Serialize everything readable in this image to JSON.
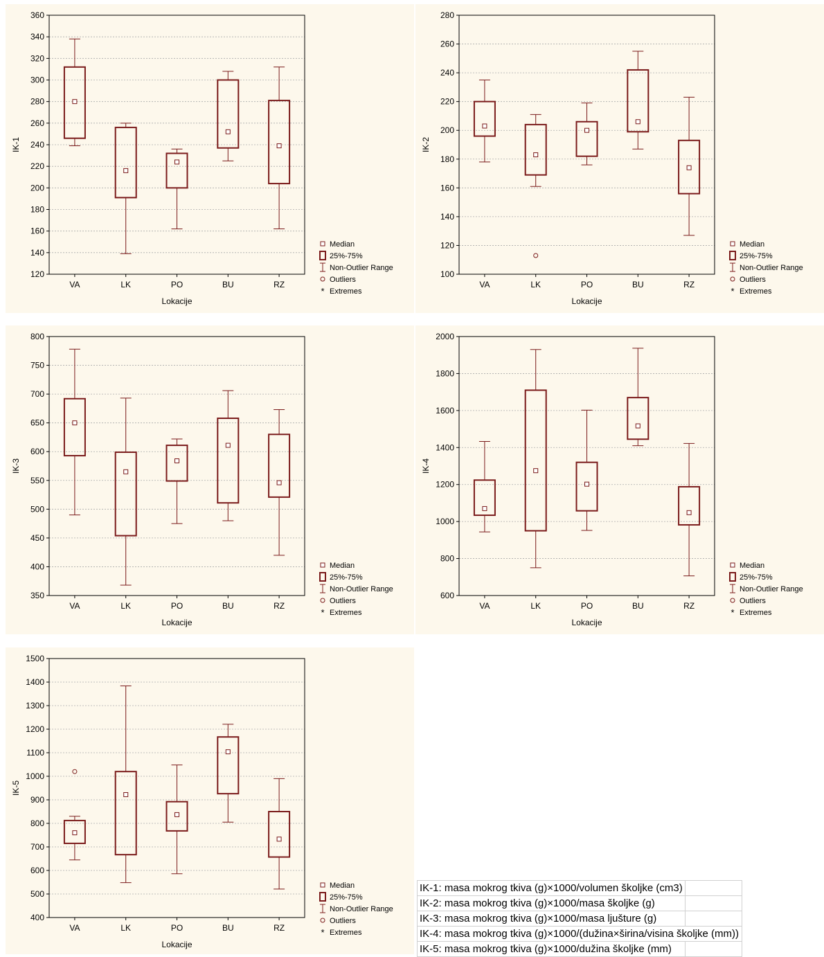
{
  "colors": {
    "panel_bg": "#fdf8ec",
    "mark": "#7a1a1a",
    "grid": "#aaaaaa"
  },
  "legend": [
    "Median",
    "25%-75%",
    "Non-Outlier Range",
    "Outliers",
    "Extremes"
  ],
  "chart_data": [
    {
      "type": "boxplot",
      "ylabel": "IK-1",
      "xlabel": "Lokacije",
      "categories": [
        "VA",
        "LK",
        "PO",
        "BU",
        "RZ"
      ],
      "ylim": [
        120,
        360
      ],
      "yticks": [
        120,
        140,
        160,
        180,
        200,
        220,
        240,
        260,
        280,
        300,
        320,
        340,
        360
      ],
      "grid": true,
      "legend_position": "bottom-right",
      "median": [
        280,
        216,
        224,
        252,
        239
      ],
      "q1": [
        246,
        191,
        200,
        237,
        204
      ],
      "q3": [
        312,
        256,
        232,
        300,
        281
      ],
      "whisker_low": [
        239,
        139,
        162,
        225,
        162
      ],
      "whisker_high": [
        338,
        260,
        236,
        308,
        312
      ],
      "outliers": [
        [],
        [],
        [],
        [],
        []
      ]
    },
    {
      "type": "boxplot",
      "ylabel": "IK-2",
      "xlabel": "Lokacije",
      "categories": [
        "VA",
        "LK",
        "PO",
        "BU",
        "RZ"
      ],
      "ylim": [
        100,
        280
      ],
      "yticks": [
        100,
        120,
        140,
        160,
        180,
        200,
        220,
        240,
        260,
        280
      ],
      "grid": true,
      "legend_position": "bottom-right",
      "median": [
        203,
        183,
        200,
        206,
        174
      ],
      "q1": [
        196,
        169,
        182,
        199,
        156
      ],
      "q3": [
        220,
        204,
        206,
        242,
        193
      ],
      "whisker_low": [
        178,
        161,
        176,
        187,
        127
      ],
      "whisker_high": [
        235,
        211,
        219,
        255,
        223
      ],
      "outliers": [
        [],
        [
          113
        ],
        [],
        [],
        []
      ]
    },
    {
      "type": "boxplot",
      "ylabel": "IK-3",
      "xlabel": "Lokacije",
      "categories": [
        "VA",
        "LK",
        "PO",
        "BU",
        "RZ"
      ],
      "ylim": [
        350,
        800
      ],
      "yticks": [
        350,
        400,
        450,
        500,
        550,
        600,
        650,
        700,
        750,
        800
      ],
      "grid": true,
      "legend_position": "bottom-right",
      "median": [
        650,
        565,
        584,
        611,
        546
      ],
      "q1": [
        593,
        454,
        549,
        511,
        521
      ],
      "q3": [
        692,
        599,
        611,
        658,
        630
      ],
      "whisker_low": [
        490,
        368,
        475,
        480,
        420
      ],
      "whisker_high": [
        778,
        693,
        622,
        706,
        673
      ],
      "outliers": [
        [],
        [],
        [],
        [],
        []
      ]
    },
    {
      "type": "boxplot",
      "ylabel": "IK-4",
      "xlabel": "Lokacije",
      "categories": [
        "VA",
        "LK",
        "PO",
        "BU",
        "RZ"
      ],
      "ylim": [
        600,
        2000
      ],
      "yticks": [
        600,
        800,
        1000,
        1200,
        1400,
        1600,
        1800,
        2000
      ],
      "grid": true,
      "legend_position": "bottom-right",
      "median": [
        1070,
        1275,
        1202,
        1517,
        1048
      ],
      "q1": [
        1034,
        950,
        1058,
        1445,
        982
      ],
      "q3": [
        1224,
        1710,
        1320,
        1670,
        1188
      ],
      "whisker_low": [
        944,
        750,
        952,
        1410,
        706
      ],
      "whisker_high": [
        1433,
        1930,
        1602,
        1937,
        1422
      ],
      "outliers": [
        [],
        [],
        [],
        [],
        []
      ]
    },
    {
      "type": "boxplot",
      "ylabel": "IK-5",
      "xlabel": "Lokacije",
      "categories": [
        "VA",
        "LK",
        "PO",
        "BU",
        "RZ"
      ],
      "ylim": [
        400,
        1500
      ],
      "yticks": [
        400,
        500,
        600,
        700,
        800,
        900,
        1000,
        1100,
        1200,
        1300,
        1400,
        1500
      ],
      "grid": true,
      "legend_position": "bottom-right",
      "median": [
        760,
        922,
        837,
        1104,
        733
      ],
      "q1": [
        715,
        667,
        768,
        926,
        657
      ],
      "q3": [
        812,
        1020,
        892,
        1167,
        850
      ],
      "whisker_low": [
        645,
        548,
        586,
        805,
        521
      ],
      "whisker_high": [
        830,
        1384,
        1048,
        1221,
        990
      ],
      "outliers": [
        [
          1020
        ],
        [],
        [],
        [],
        []
      ]
    }
  ],
  "definitions": [
    "IK-1: masa mokrog tkiva (g)×1000/volumen školjke (cm3)",
    "IK-2: masa mokrog tkiva (g)×1000/masa školjke (g)",
    "IK-3: masa mokrog tkiva (g)×1000/masa ljušture (g)",
    "IK-4: masa mokrog tkiva (g)×1000/(dužina×širina/visina školjke (mm))",
    "IK-5: masa mokrog tkiva (g)×1000/dužina školjke (mm)"
  ]
}
